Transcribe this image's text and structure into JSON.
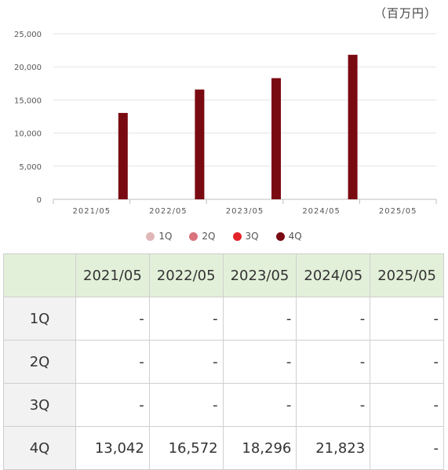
{
  "unit_label": "（百万円）",
  "colors": {
    "q1": "#e0b7b7",
    "q2": "#d9737d",
    "q3": "#e3232a",
    "q4": "#7a0a12",
    "grid": "#e3e3e3"
  },
  "legend": [
    {
      "key": "q1",
      "label": "1Q"
    },
    {
      "key": "q2",
      "label": "2Q"
    },
    {
      "key": "q3",
      "label": "3Q"
    },
    {
      "key": "q4",
      "label": "4Q"
    }
  ],
  "chart_data": {
    "type": "bar",
    "categories": [
      "2021/05",
      "2022/05",
      "2023/05",
      "2024/05",
      "2025/05"
    ],
    "series": [
      {
        "name": "1Q",
        "values": [
          null,
          null,
          null,
          null,
          null
        ]
      },
      {
        "name": "2Q",
        "values": [
          null,
          null,
          null,
          null,
          null
        ]
      },
      {
        "name": "3Q",
        "values": [
          null,
          null,
          null,
          null,
          null
        ]
      },
      {
        "name": "4Q",
        "values": [
          13042,
          16572,
          18296,
          21823,
          null
        ]
      }
    ],
    "yticks": [
      "0",
      "5,000",
      "10,000",
      "15,000",
      "20,000",
      "25,000"
    ],
    "ylim": [
      0,
      25000
    ],
    "grid": true,
    "legend_position": "bottom"
  },
  "table": {
    "headers": [
      "",
      "2021/05",
      "2022/05",
      "2023/05",
      "2024/05",
      "2025/05"
    ],
    "rows": [
      {
        "label": "1Q",
        "cells": [
          "-",
          "-",
          "-",
          "-",
          "-"
        ]
      },
      {
        "label": "2Q",
        "cells": [
          "-",
          "-",
          "-",
          "-",
          "-"
        ]
      },
      {
        "label": "3Q",
        "cells": [
          "-",
          "-",
          "-",
          "-",
          "-"
        ]
      },
      {
        "label": "4Q",
        "cells": [
          "13,042",
          "16,572",
          "18,296",
          "21,823",
          "-"
        ]
      }
    ]
  }
}
